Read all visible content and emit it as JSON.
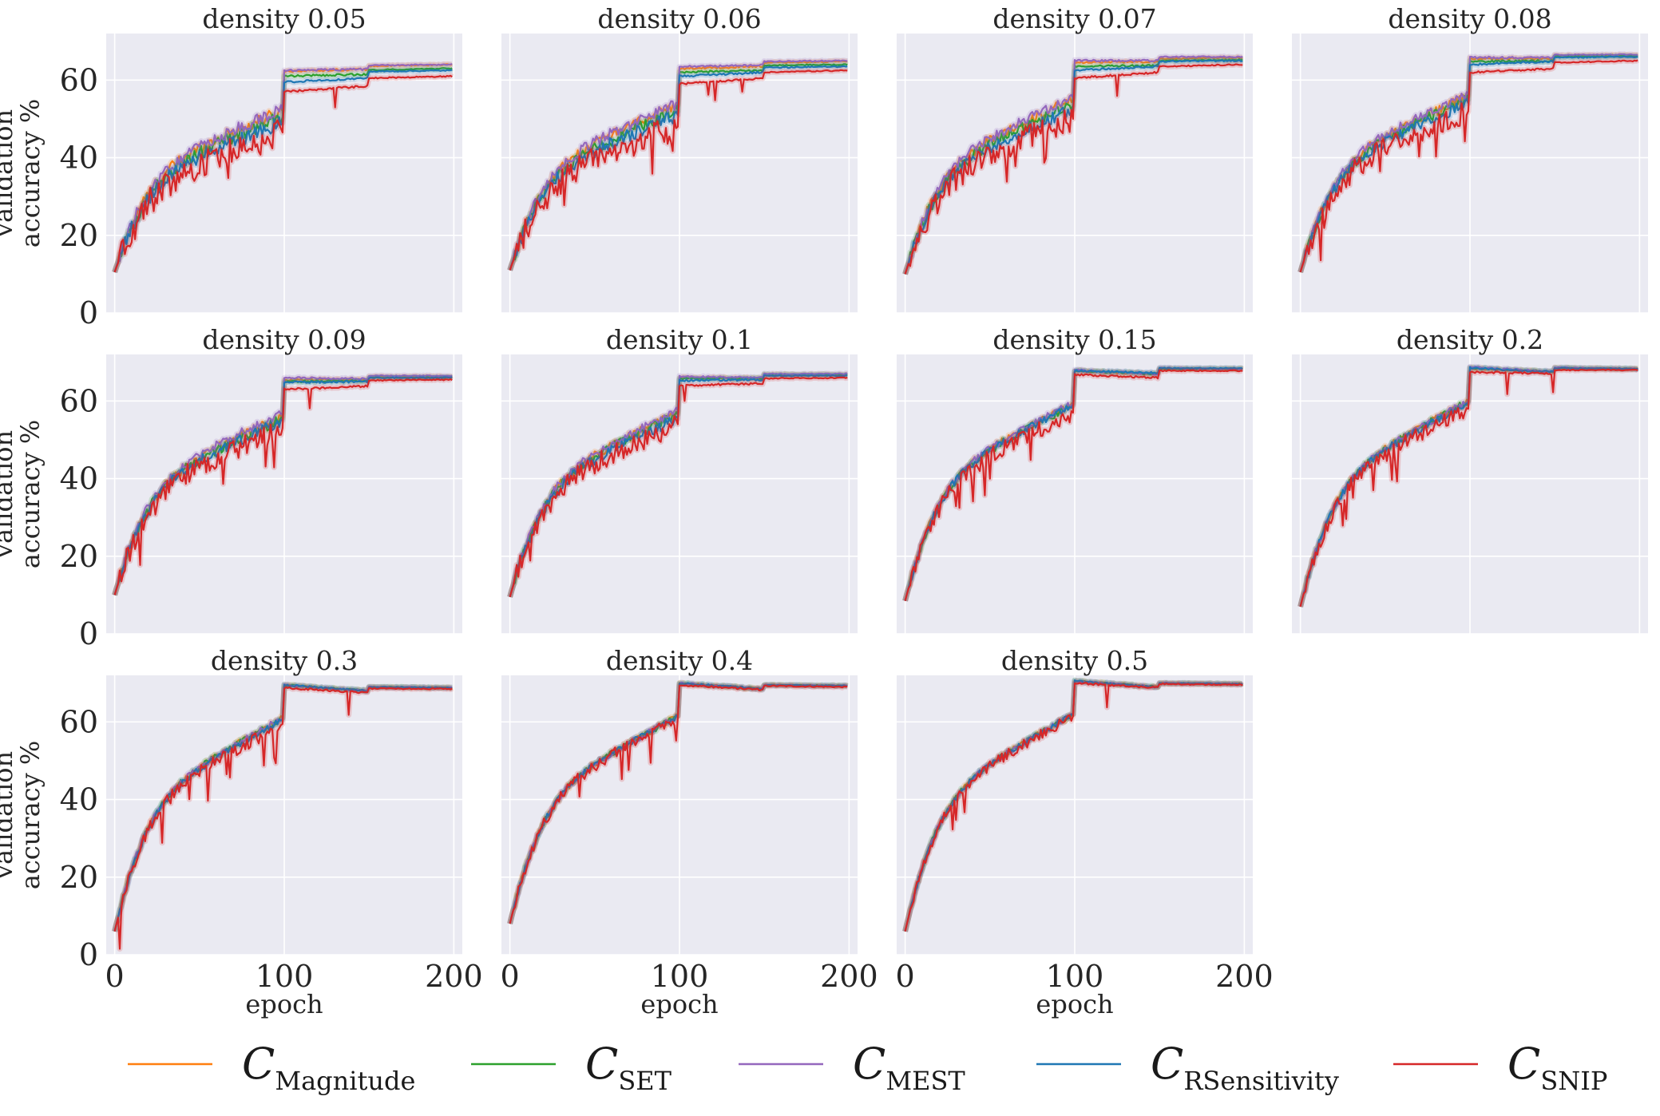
{
  "chart_data": {
    "type": "line",
    "layout": "small-multiples",
    "xlabel": "epoch",
    "ylabel_line1": "validation",
    "ylabel_line2": "accuracy %",
    "xlim": [
      -5,
      205
    ],
    "ylim": [
      0,
      72
    ],
    "xticks": [
      0,
      100,
      200
    ],
    "yticks": [
      0,
      20,
      40,
      60
    ],
    "xtick_labels": [
      "0",
      "100",
      "200"
    ],
    "ytick_labels": [
      "0",
      "20",
      "40",
      "60"
    ],
    "colors": {
      "Magnitude": "#ff7f0e",
      "SET": "#2ca02c",
      "MEST": "#9467bd",
      "RSensitivity": "#1f77b4",
      "SNIP": "#d62728"
    },
    "legend": [
      {
        "symbol": "C",
        "subscript": "Magnitude",
        "color": "#ff7f0e"
      },
      {
        "symbol": "C",
        "subscript": "SET",
        "color": "#2ca02c"
      },
      {
        "symbol": "C",
        "subscript": "MEST",
        "color": "#9467bd"
      },
      {
        "symbol": "C",
        "subscript": "RSensitivity",
        "color": "#1f77b4"
      },
      {
        "symbol": "C",
        "subscript": "SNIP",
        "color": "#d62728"
      }
    ],
    "panels": [
      {
        "title": "density 0.05",
        "start": 10.5,
        "series": [
          {
            "name": "Magnitude",
            "e99": 52.0,
            "e100": 62.3,
            "e149": 62.8,
            "e150": 63.6,
            "e199": 64.0
          },
          {
            "name": "SET",
            "e99": 50.5,
            "e100": 61.0,
            "e149": 61.5,
            "e150": 62.6,
            "e199": 63.0
          },
          {
            "name": "MEST",
            "e99": 52.5,
            "e100": 62.5,
            "e149": 62.8,
            "e150": 63.8,
            "e199": 64.0
          },
          {
            "name": "RSensitivity",
            "e99": 49.0,
            "e100": 59.5,
            "e149": 60.5,
            "e150": 62.2,
            "e199": 62.5
          },
          {
            "name": "SNIP",
            "e99": 46.5,
            "e100": 57.0,
            "e149": 58.5,
            "e150": 60.5,
            "e199": 61.0
          }
        ]
      },
      {
        "title": "density 0.06",
        "start": 11.0,
        "series": [
          {
            "name": "Magnitude",
            "e99": 53.5,
            "e100": 63.0,
            "e149": 63.5,
            "e150": 64.5,
            "e199": 64.8
          },
          {
            "name": "SET",
            "e99": 52.0,
            "e100": 62.0,
            "e149": 62.5,
            "e150": 63.8,
            "e199": 64.0
          },
          {
            "name": "MEST",
            "e99": 54.0,
            "e100": 63.5,
            "e149": 63.8,
            "e150": 64.8,
            "e199": 65.0
          },
          {
            "name": "RSensitivity",
            "e99": 51.0,
            "e100": 61.0,
            "e149": 62.0,
            "e150": 63.2,
            "e199": 63.5
          },
          {
            "name": "SNIP",
            "e99": 48.0,
            "e100": 59.0,
            "e149": 60.5,
            "e150": 62.0,
            "e199": 62.5
          }
        ]
      },
      {
        "title": "density 0.07",
        "start": 10.0,
        "series": [
          {
            "name": "Magnitude",
            "e99": 55.0,
            "e100": 64.5,
            "e149": 64.8,
            "e150": 65.5,
            "e199": 65.8
          },
          {
            "name": "SET",
            "e99": 53.5,
            "e100": 63.5,
            "e149": 63.8,
            "e150": 65.0,
            "e199": 65.2
          },
          {
            "name": "MEST",
            "e99": 55.5,
            "e100": 65.0,
            "e149": 65.0,
            "e150": 66.0,
            "e199": 66.0
          },
          {
            "name": "RSensitivity",
            "e99": 52.5,
            "e100": 62.5,
            "e149": 63.5,
            "e150": 64.8,
            "e199": 65.0
          },
          {
            "name": "SNIP",
            "e99": 50.0,
            "e100": 60.5,
            "e149": 62.0,
            "e150": 63.5,
            "e199": 64.0
          }
        ]
      },
      {
        "title": "density 0.08",
        "start": 10.5,
        "series": [
          {
            "name": "Magnitude",
            "e99": 56.0,
            "e100": 65.5,
            "e149": 65.5,
            "e150": 66.3,
            "e199": 66.5
          },
          {
            "name": "SET",
            "e99": 55.0,
            "e100": 64.8,
            "e149": 65.0,
            "e150": 66.0,
            "e199": 66.2
          },
          {
            "name": "MEST",
            "e99": 56.5,
            "e100": 65.8,
            "e149": 65.8,
            "e150": 66.5,
            "e199": 66.6
          },
          {
            "name": "RSensitivity",
            "e99": 54.0,
            "e100": 64.0,
            "e149": 64.8,
            "e150": 65.8,
            "e199": 66.0
          },
          {
            "name": "SNIP",
            "e99": 52.0,
            "e100": 62.0,
            "e149": 63.0,
            "e150": 64.5,
            "e199": 65.0
          }
        ]
      },
      {
        "title": "density 0.09",
        "start": 10.0,
        "series": [
          {
            "name": "Magnitude",
            "e99": 56.0,
            "e100": 65.5,
            "e149": 65.5,
            "e150": 66.3,
            "e199": 66.3
          },
          {
            "name": "SET",
            "e99": 55.5,
            "e100": 65.0,
            "e149": 65.2,
            "e150": 66.0,
            "e199": 66.0
          },
          {
            "name": "MEST",
            "e99": 57.0,
            "e100": 66.0,
            "e149": 65.8,
            "e150": 66.5,
            "e199": 66.5
          },
          {
            "name": "RSensitivity",
            "e99": 55.0,
            "e100": 64.8,
            "e149": 65.0,
            "e150": 66.0,
            "e199": 66.0
          },
          {
            "name": "SNIP",
            "e99": 53.0,
            "e100": 63.0,
            "e149": 63.8,
            "e150": 65.3,
            "e199": 65.5
          }
        ]
      },
      {
        "title": "density 0.1",
        "start": 9.5,
        "series": [
          {
            "name": "Magnitude",
            "e99": 57.0,
            "e100": 66.0,
            "e149": 65.8,
            "e150": 66.8,
            "e199": 66.8
          },
          {
            "name": "SET",
            "e99": 56.5,
            "e100": 65.8,
            "e149": 65.8,
            "e150": 66.8,
            "e199": 66.8
          },
          {
            "name": "MEST",
            "e99": 57.5,
            "e100": 66.3,
            "e149": 66.0,
            "e150": 67.0,
            "e199": 67.0
          },
          {
            "name": "RSensitivity",
            "e99": 55.5,
            "e100": 65.3,
            "e149": 65.5,
            "e150": 66.5,
            "e199": 66.5
          },
          {
            "name": "SNIP",
            "e99": 54.0,
            "e100": 64.0,
            "e149": 64.5,
            "e150": 65.8,
            "e199": 66.0
          }
        ]
      },
      {
        "title": "density 0.15",
        "start": 8.5,
        "series": [
          {
            "name": "Magnitude",
            "e99": 59.5,
            "e100": 67.8,
            "e149": 67.0,
            "e150": 68.3,
            "e199": 68.3
          },
          {
            "name": "SET",
            "e99": 59.0,
            "e100": 67.8,
            "e149": 67.0,
            "e150": 68.3,
            "e199": 68.3
          },
          {
            "name": "MEST",
            "e99": 59.5,
            "e100": 68.0,
            "e149": 67.0,
            "e150": 68.5,
            "e199": 68.3
          },
          {
            "name": "RSensitivity",
            "e99": 59.0,
            "e100": 67.8,
            "e149": 67.2,
            "e150": 68.5,
            "e199": 68.4
          },
          {
            "name": "SNIP",
            "e99": 57.0,
            "e100": 66.8,
            "e149": 66.0,
            "e150": 67.8,
            "e199": 67.8
          }
        ]
      },
      {
        "title": "density 0.2",
        "start": 7.0,
        "series": [
          {
            "name": "Magnitude",
            "e99": 60.0,
            "e100": 68.5,
            "e149": 67.5,
            "e150": 68.5,
            "e199": 68.3
          },
          {
            "name": "SET",
            "e99": 60.0,
            "e100": 68.5,
            "e149": 67.5,
            "e150": 68.5,
            "e199": 68.3
          },
          {
            "name": "MEST",
            "e99": 60.0,
            "e100": 68.8,
            "e149": 67.5,
            "e150": 68.6,
            "e199": 68.3
          },
          {
            "name": "RSensitivity",
            "e99": 59.5,
            "e100": 68.5,
            "e149": 67.5,
            "e150": 68.5,
            "e199": 68.3
          },
          {
            "name": "SNIP",
            "e99": 58.0,
            "e100": 67.5,
            "e149": 67.0,
            "e150": 68.0,
            "e199": 68.0
          }
        ]
      },
      {
        "title": "density 0.3",
        "start": 6.0,
        "series": [
          {
            "name": "Magnitude",
            "e99": 61.0,
            "e100": 69.5,
            "e149": 68.0,
            "e150": 69.0,
            "e199": 68.8
          },
          {
            "name": "SET",
            "e99": 61.0,
            "e100": 69.5,
            "e149": 68.0,
            "e150": 69.0,
            "e199": 68.8
          },
          {
            "name": "MEST",
            "e99": 61.0,
            "e100": 69.5,
            "e149": 68.0,
            "e150": 69.0,
            "e199": 68.8
          },
          {
            "name": "RSensitivity",
            "e99": 60.5,
            "e100": 69.5,
            "e149": 68.0,
            "e150": 69.0,
            "e199": 68.8
          },
          {
            "name": "SNIP",
            "e99": 59.5,
            "e100": 68.8,
            "e149": 67.5,
            "e150": 68.6,
            "e199": 68.5
          }
        ]
      },
      {
        "title": "density 0.4",
        "start": 8.0,
        "series": [
          {
            "name": "Magnitude",
            "e99": 61.5,
            "e100": 70.0,
            "e149": 68.5,
            "e150": 69.5,
            "e199": 69.3
          },
          {
            "name": "SET",
            "e99": 61.5,
            "e100": 70.0,
            "e149": 68.5,
            "e150": 69.5,
            "e199": 69.3
          },
          {
            "name": "MEST",
            "e99": 61.5,
            "e100": 70.0,
            "e149": 68.5,
            "e150": 69.5,
            "e199": 69.3
          },
          {
            "name": "RSensitivity",
            "e99": 61.5,
            "e100": 70.0,
            "e149": 68.5,
            "e150": 69.5,
            "e199": 69.3
          },
          {
            "name": "SNIP",
            "e99": 61.0,
            "e100": 69.5,
            "e149": 68.3,
            "e150": 69.3,
            "e199": 69.0
          }
        ]
      },
      {
        "title": "density 0.5",
        "start": 6.0,
        "series": [
          {
            "name": "Magnitude",
            "e99": 62.0,
            "e100": 70.5,
            "e149": 69.0,
            "e150": 70.0,
            "e199": 69.8
          },
          {
            "name": "SET",
            "e99": 62.0,
            "e100": 70.5,
            "e149": 69.0,
            "e150": 70.0,
            "e199": 69.8
          },
          {
            "name": "MEST",
            "e99": 62.0,
            "e100": 70.5,
            "e149": 69.0,
            "e150": 70.0,
            "e199": 69.8
          },
          {
            "name": "RSensitivity",
            "e99": 62.0,
            "e100": 70.5,
            "e149": 69.0,
            "e150": 70.0,
            "e199": 69.8
          },
          {
            "name": "SNIP",
            "e99": 61.5,
            "e100": 70.0,
            "e149": 68.8,
            "e150": 69.8,
            "e199": 69.5
          }
        ]
      }
    ]
  }
}
